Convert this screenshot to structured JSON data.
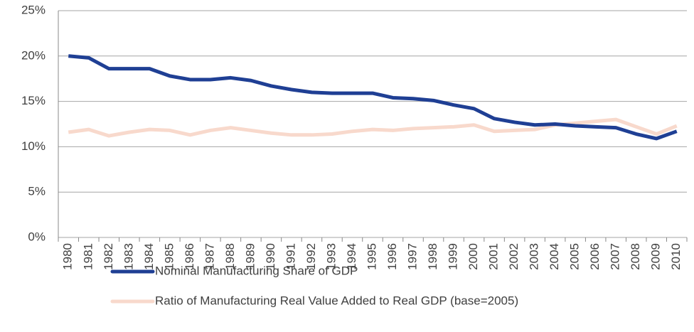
{
  "chart_data": {
    "type": "line",
    "categories": [
      "1980",
      "1981",
      "1982",
      "1983",
      "1984",
      "1985",
      "1986",
      "1987",
      "1988",
      "1989",
      "1990",
      "1991",
      "1992",
      "1993",
      "1994",
      "1995",
      "1996",
      "1997",
      "1998",
      "1999",
      "2000",
      "2001",
      "2002",
      "2003",
      "2004",
      "2005",
      "2006",
      "2007",
      "2008",
      "2009",
      "2010"
    ],
    "series": [
      {
        "name": "Nominal Manufacturing Share of GDP",
        "color": "#1f3f94",
        "values": [
          20.0,
          19.8,
          18.6,
          18.6,
          18.6,
          17.8,
          17.4,
          17.4,
          17.6,
          17.3,
          16.7,
          16.3,
          16.0,
          15.9,
          15.9,
          15.9,
          15.4,
          15.3,
          15.1,
          14.6,
          14.2,
          13.1,
          12.7,
          12.4,
          12.5,
          12.3,
          12.2,
          12.1,
          11.4,
          10.9,
          11.7
        ]
      },
      {
        "name": "Ratio of Manufacturing Real Value Added to Real GDP (base=2005)",
        "color": "#f8d9cc",
        "values": [
          11.6,
          11.9,
          11.2,
          11.6,
          11.9,
          11.8,
          11.3,
          11.8,
          12.1,
          11.8,
          11.5,
          11.3,
          11.3,
          11.4,
          11.7,
          11.9,
          11.8,
          12.0,
          12.1,
          12.2,
          12.4,
          11.7,
          11.8,
          11.9,
          12.4,
          12.6,
          12.8,
          13.0,
          12.2,
          11.4,
          12.3
        ]
      }
    ],
    "ylim": [
      0,
      25
    ],
    "yticks": [
      {
        "value": 0,
        "label": "0%"
      },
      {
        "value": 5,
        "label": "5%"
      },
      {
        "value": 10,
        "label": "10%"
      },
      {
        "value": 15,
        "label": "15%"
      },
      {
        "value": 20,
        "label": "20%"
      },
      {
        "value": 25,
        "label": "25%"
      }
    ],
    "grid": true
  }
}
